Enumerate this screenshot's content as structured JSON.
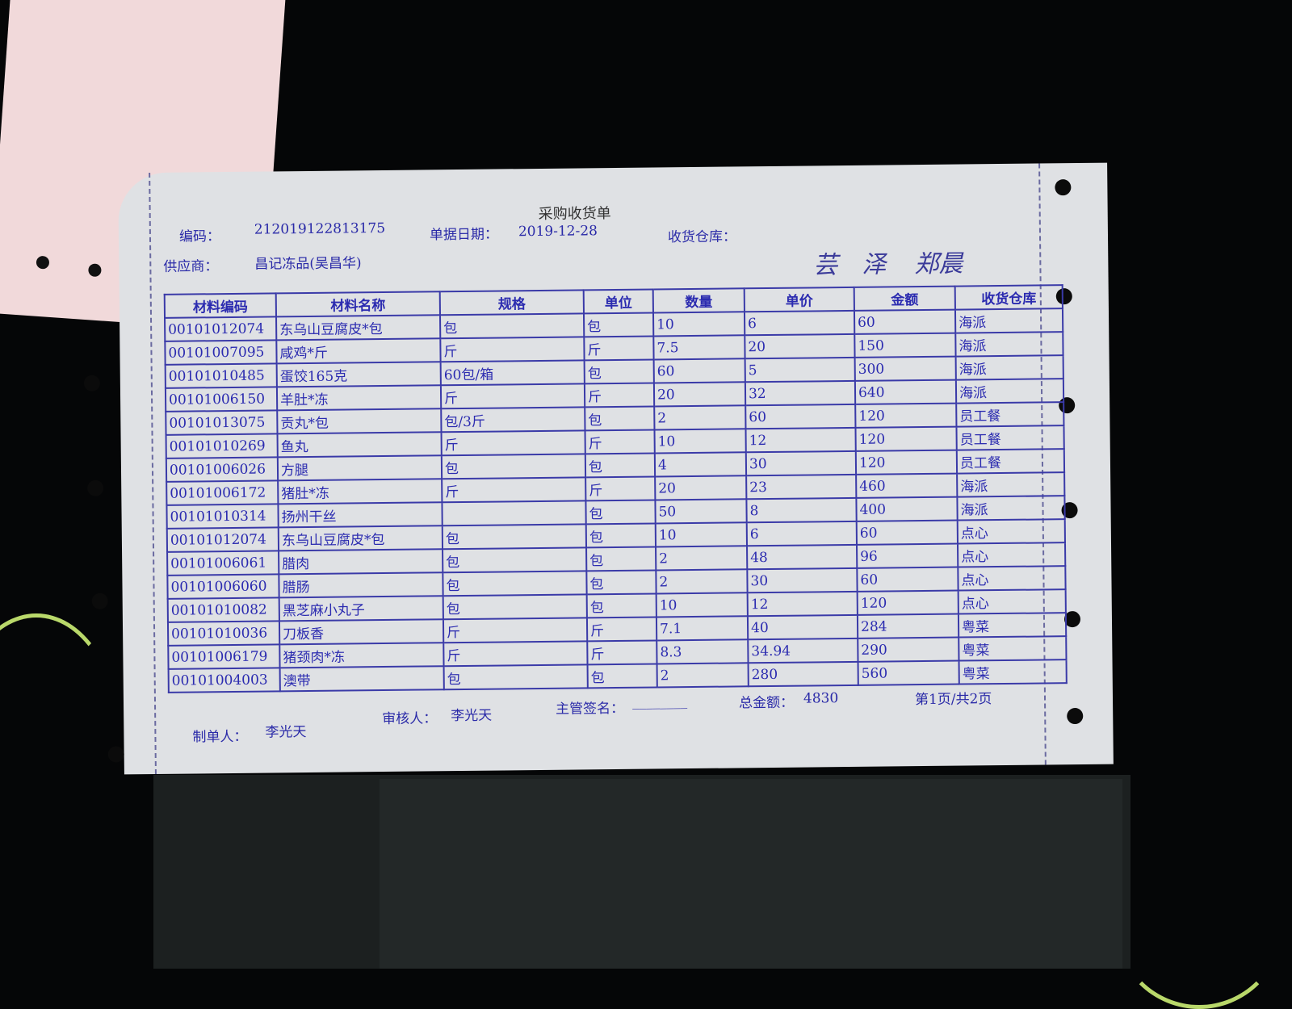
{
  "document": {
    "title": "采购收货单",
    "doc_no_label": "编码：",
    "doc_no": "212019122813175",
    "date_label": "单据日期：",
    "date": "2019-12-28",
    "warehouse_label": "收货仓库：",
    "supplier_label": "供应商：",
    "supplier": "昌记冻品(吴昌华)"
  },
  "table": {
    "headers": [
      "材料编码",
      "材料名称",
      "规格",
      "单位",
      "数量",
      "单价",
      "金额",
      "收货仓库"
    ],
    "rows": [
      [
        "00101012074",
        "东乌山豆腐皮*包",
        "包",
        "包",
        "10",
        "6",
        "60",
        "海派"
      ],
      [
        "00101007095",
        "咸鸡*斤",
        "斤",
        "斤",
        "7.5",
        "20",
        "150",
        "海派"
      ],
      [
        "00101010485",
        "蛋饺165克",
        "60包/箱",
        "包",
        "60",
        "5",
        "300",
        "海派"
      ],
      [
        "00101006150",
        "羊肚*冻",
        "斤",
        "斤",
        "20",
        "32",
        "640",
        "海派"
      ],
      [
        "00101013075",
        "贡丸*包",
        "包/3斤",
        "包",
        "2",
        "60",
        "120",
        "员工餐"
      ],
      [
        "00101010269",
        "鱼丸",
        "斤",
        "斤",
        "10",
        "12",
        "120",
        "员工餐"
      ],
      [
        "00101006026",
        "方腿",
        "包",
        "包",
        "4",
        "30",
        "120",
        "员工餐"
      ],
      [
        "00101006172",
        "猪肚*冻",
        "斤",
        "斤",
        "20",
        "23",
        "460",
        "海派"
      ],
      [
        "00101010314",
        "扬州干丝",
        "",
        "包",
        "50",
        "8",
        "400",
        "海派"
      ],
      [
        "00101012074",
        "东乌山豆腐皮*包",
        "包",
        "包",
        "10",
        "6",
        "60",
        "点心"
      ],
      [
        "00101006061",
        "腊肉",
        "包",
        "包",
        "2",
        "48",
        "96",
        "点心"
      ],
      [
        "00101006060",
        "腊肠",
        "包",
        "包",
        "2",
        "30",
        "60",
        "点心"
      ],
      [
        "00101010082",
        "黑芝麻小丸子",
        "包",
        "包",
        "10",
        "12",
        "120",
        "点心"
      ],
      [
        "00101010036",
        "刀板香",
        "斤",
        "斤",
        "7.1",
        "40",
        "284",
        "粤菜"
      ],
      [
        "00101006179",
        "猪颈肉*冻",
        "斤",
        "斤",
        "8.3",
        "34.94",
        "290",
        "粤菜"
      ],
      [
        "00101004003",
        "澳带",
        "包",
        "包",
        "2",
        "280",
        "560",
        "粤菜"
      ]
    ]
  },
  "footer": {
    "maker_label": "制单人：",
    "maker": "李光天",
    "reviewer_label": "审核人：",
    "reviewer": "李光天",
    "supervisor_label": "主管签名：",
    "supervisor": "________",
    "total_label": "总金额：",
    "total": "4830",
    "page": "第1页/共2页"
  },
  "colors": {
    "ink": "#2b2bb0",
    "paper": "#dfe1e4",
    "background": "#050607"
  }
}
